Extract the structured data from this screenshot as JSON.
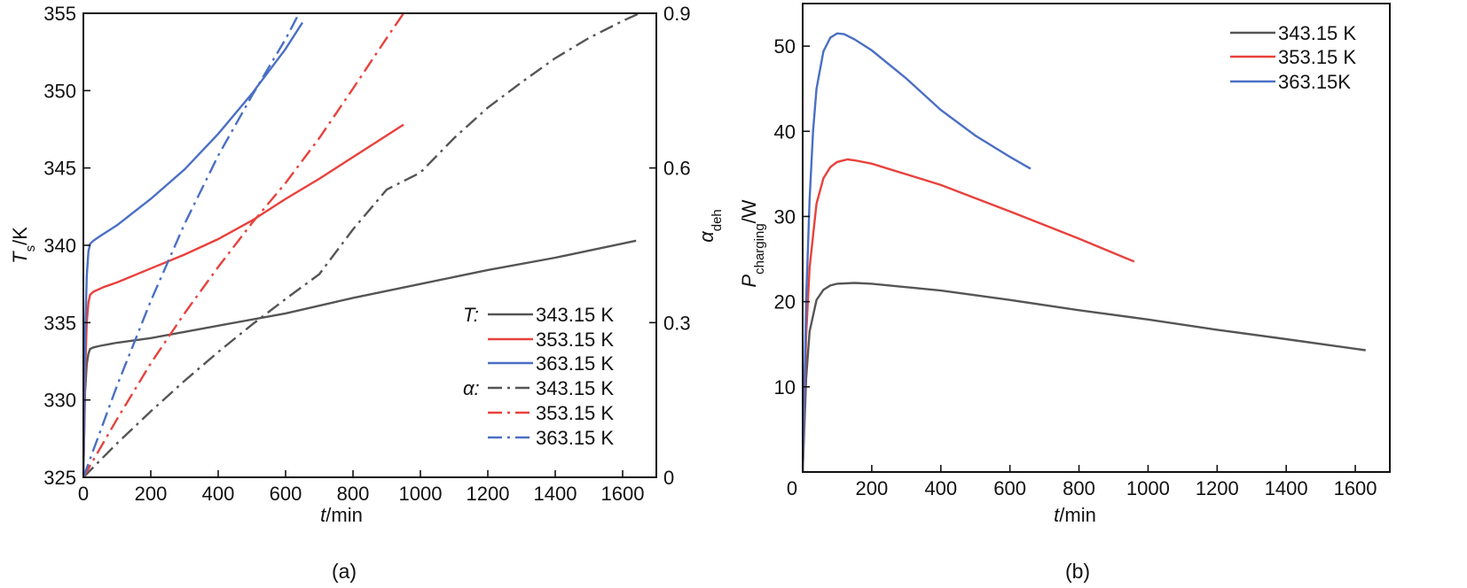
{
  "chart_data": [
    {
      "panel": "a",
      "type": "line",
      "caption": "(a)",
      "xlabel": {
        "italic": "t",
        "rest": "/min"
      },
      "ylabel_left": {
        "italic": "T",
        "sub": "s",
        "rest": "/K"
      },
      "ylabel_right": {
        "main": "α",
        "sub": "deh"
      },
      "xlim": [
        0,
        1700
      ],
      "ylim_left": [
        325,
        355
      ],
      "ylim_right": [
        0,
        0.9
      ],
      "xticks": [
        0,
        200,
        400,
        600,
        800,
        1000,
        1200,
        1400,
        1600
      ],
      "yticks_left": [
        325,
        330,
        335,
        340,
        345,
        350,
        355
      ],
      "yticks_right": [
        "0",
        "0.3",
        "0.6",
        "0.9"
      ],
      "yticks_right_values": [
        0,
        0.3,
        0.6,
        0.9
      ],
      "legend": {
        "position": "lower-right",
        "group_T_label": "T:",
        "group_alpha_label": "α:"
      },
      "series": [
        {
          "name": "343.15 K",
          "group": "T",
          "axis": "left",
          "color": "#555555",
          "dash": "solid",
          "x": [
            0,
            5,
            10,
            15,
            20,
            30,
            50,
            100,
            200,
            300,
            400,
            600,
            800,
            1000,
            1200,
            1400,
            1640
          ],
          "y": [
            325,
            330.5,
            332.3,
            333.0,
            333.3,
            333.4,
            333.5,
            333.7,
            334.0,
            334.4,
            334.8,
            335.6,
            336.6,
            337.5,
            338.4,
            339.2,
            340.3
          ]
        },
        {
          "name": "353.15 K",
          "group": "T",
          "axis": "left",
          "color": "#e8413c",
          "dash": "solid",
          "x": [
            0,
            5,
            10,
            15,
            20,
            30,
            60,
            100,
            200,
            300,
            400,
            500,
            600,
            700,
            800,
            900,
            950
          ],
          "y": [
            325,
            331.5,
            335.0,
            336.3,
            336.8,
            337.0,
            337.3,
            337.6,
            338.5,
            339.4,
            340.4,
            341.6,
            343.0,
            344.3,
            345.7,
            347.1,
            347.8
          ]
        },
        {
          "name": "363.15 K",
          "group": "T",
          "axis": "left",
          "color": "#4a6fc4",
          "dash": "solid",
          "x": [
            0,
            5,
            10,
            15,
            20,
            30,
            50,
            100,
            200,
            300,
            400,
            500,
            600,
            650
          ],
          "y": [
            325,
            334.0,
            338.0,
            339.6,
            340.1,
            340.3,
            340.6,
            341.3,
            343.0,
            344.9,
            347.2,
            349.8,
            352.7,
            354.4
          ]
        },
        {
          "name": "343.15 K",
          "group": "alpha",
          "axis": "right",
          "color": "#555555",
          "dash": "dashdot",
          "x": [
            0,
            100,
            200,
            300,
            400,
            500,
            600,
            700,
            800,
            900,
            1000,
            1100,
            1200,
            1300,
            1400,
            1500,
            1600,
            1650
          ],
          "y": [
            0,
            0.066,
            0.128,
            0.187,
            0.243,
            0.296,
            0.346,
            0.394,
            0.481,
            0.558,
            0.591,
            0.658,
            0.717,
            0.766,
            0.813,
            0.852,
            0.885,
            0.9
          ]
        },
        {
          "name": "353.15 K",
          "group": "alpha",
          "axis": "right",
          "color": "#e8413c",
          "dash": "dashdot",
          "x": [
            0,
            100,
            200,
            300,
            400,
            500,
            600,
            700,
            800,
            900,
            950
          ],
          "y": [
            0,
            0.113,
            0.221,
            0.318,
            0.408,
            0.493,
            0.571,
            0.658,
            0.754,
            0.852,
            0.9
          ]
        },
        {
          "name": "363.15 K",
          "group": "alpha",
          "axis": "right",
          "color": "#4a6fc4",
          "dash": "dashdot",
          "x": [
            0,
            100,
            200,
            300,
            400,
            500,
            600,
            640
          ],
          "y": [
            0,
            0.178,
            0.342,
            0.491,
            0.624,
            0.74,
            0.85,
            0.9
          ]
        }
      ]
    },
    {
      "panel": "b",
      "type": "line",
      "caption": "(b)",
      "xlabel": {
        "italic": "t",
        "rest": "/min"
      },
      "ylabel": {
        "italic": "P",
        "sub": "charging",
        "rest": "/W"
      },
      "xlim": [
        0,
        1700
      ],
      "ylim": [
        0,
        55
      ],
      "xticks": [
        0,
        200,
        400,
        600,
        800,
        1000,
        1200,
        1400,
        1600
      ],
      "yticks": [
        10,
        20,
        30,
        40,
        50
      ],
      "x_origin_label": "0",
      "legend": {
        "position": "top-right"
      },
      "series": [
        {
          "name": "343.15 K",
          "color": "#555555",
          "x": [
            0,
            10,
            20,
            40,
            60,
            80,
            100,
            150,
            200,
            400,
            600,
            800,
            1000,
            1200,
            1400,
            1630
          ],
          "y": [
            0,
            11.0,
            16.5,
            20.2,
            21.4,
            21.9,
            22.1,
            22.2,
            22.1,
            21.3,
            20.2,
            19.0,
            17.9,
            16.7,
            15.6,
            14.3
          ]
        },
        {
          "name": "353.15 K",
          "color": "#e8413c",
          "x": [
            0,
            10,
            20,
            40,
            60,
            80,
            100,
            130,
            150,
            200,
            400,
            600,
            800,
            960
          ],
          "y": [
            0,
            16.0,
            24.0,
            31.5,
            34.5,
            35.8,
            36.4,
            36.7,
            36.6,
            36.2,
            33.7,
            30.6,
            27.4,
            24.7
          ]
        },
        {
          "name": "363.15K",
          "color": "#4a6fc4",
          "x": [
            0,
            10,
            20,
            30,
            40,
            60,
            80,
            100,
            120,
            150,
            200,
            300,
            400,
            500,
            600,
            660
          ],
          "y": [
            0,
            20.0,
            32.0,
            40.0,
            45.0,
            49.4,
            51.0,
            51.5,
            51.4,
            50.8,
            49.5,
            46.2,
            42.5,
            39.5,
            37.0,
            35.6
          ]
        }
      ]
    }
  ]
}
